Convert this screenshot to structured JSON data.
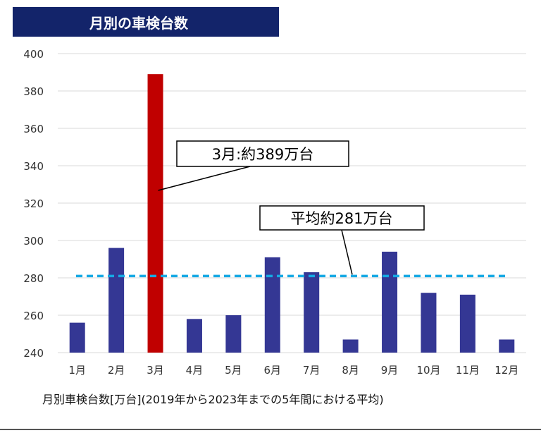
{
  "header": {
    "title": "月別の車検台数"
  },
  "chart_data": {
    "type": "bar",
    "title": "月別の車検台数",
    "categories": [
      "1月",
      "2月",
      "3月",
      "4月",
      "5月",
      "6月",
      "7月",
      "8月",
      "9月",
      "10月",
      "11月",
      "12月"
    ],
    "values": [
      256,
      296,
      389,
      258,
      260,
      291,
      283,
      247,
      294,
      272,
      271,
      247
    ],
    "ylim": [
      240,
      400
    ],
    "yticks": [
      240,
      260,
      280,
      300,
      320,
      340,
      360,
      380,
      400
    ],
    "grid": true,
    "average": 281,
    "highlight_index": 2,
    "colors": {
      "bar": "#343794",
      "highlight": "#c00000",
      "average_line": "#16a9e4",
      "grid": "#d9d9d9"
    },
    "annotations": {
      "peak": "3月:約389万台",
      "average": "平均約281万台"
    },
    "xlabel": "月別車検台数[万台](2019年から2023年までの5年間における平均)"
  }
}
